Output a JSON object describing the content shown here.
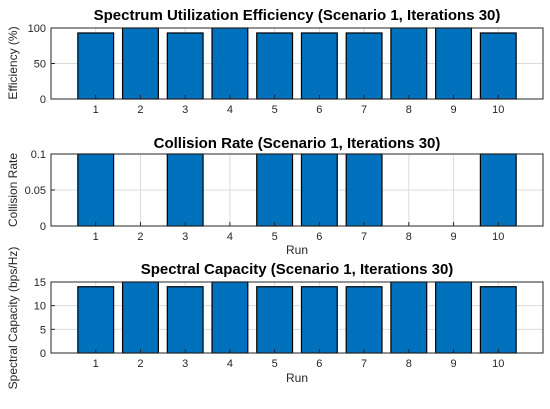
{
  "chart_data": [
    {
      "type": "bar",
      "title": "Spectrum Utilization Efficiency (Scenario 1, Iterations 30)",
      "xlabel": "",
      "ylabel": "Efficiency (%)",
      "categories": [
        "1",
        "2",
        "3",
        "4",
        "5",
        "6",
        "7",
        "8",
        "9",
        "10"
      ],
      "values": [
        93,
        100,
        93,
        100,
        93,
        93,
        93,
        100,
        100,
        93
      ],
      "ylim": [
        0,
        100
      ],
      "yticks": [
        "0",
        "50",
        "100"
      ],
      "grid": true,
      "color": "#0072BD"
    },
    {
      "type": "bar",
      "title": "Collision Rate (Scenario 1, Iterations 30)",
      "xlabel": "Run",
      "ylabel": "Collision Rate",
      "categories": [
        "1",
        "2",
        "3",
        "4",
        "5",
        "6",
        "7",
        "8",
        "9",
        "10"
      ],
      "values": [
        0.1,
        0,
        0.1,
        0,
        0.1,
        0.1,
        0.1,
        0,
        0,
        0.1
      ],
      "ylim": [
        0,
        0.1
      ],
      "yticks": [
        "0",
        "0.05",
        "0.1"
      ],
      "grid": true,
      "color": "#0072BD"
    },
    {
      "type": "bar",
      "title": "Spectral Capacity (Scenario 1, Iterations 30)",
      "xlabel": "Run",
      "ylabel": "Spectral Capacity (bps/Hz)",
      "categories": [
        "1",
        "2",
        "3",
        "4",
        "5",
        "6",
        "7",
        "8",
        "9",
        "10"
      ],
      "values": [
        14,
        15,
        14,
        15,
        14,
        14,
        14,
        15,
        15,
        14
      ],
      "ylim": [
        0,
        15
      ],
      "yticks": [
        "0",
        "5",
        "10",
        "15"
      ],
      "grid": true,
      "color": "#0072BD"
    }
  ],
  "bottom_label": "Run"
}
